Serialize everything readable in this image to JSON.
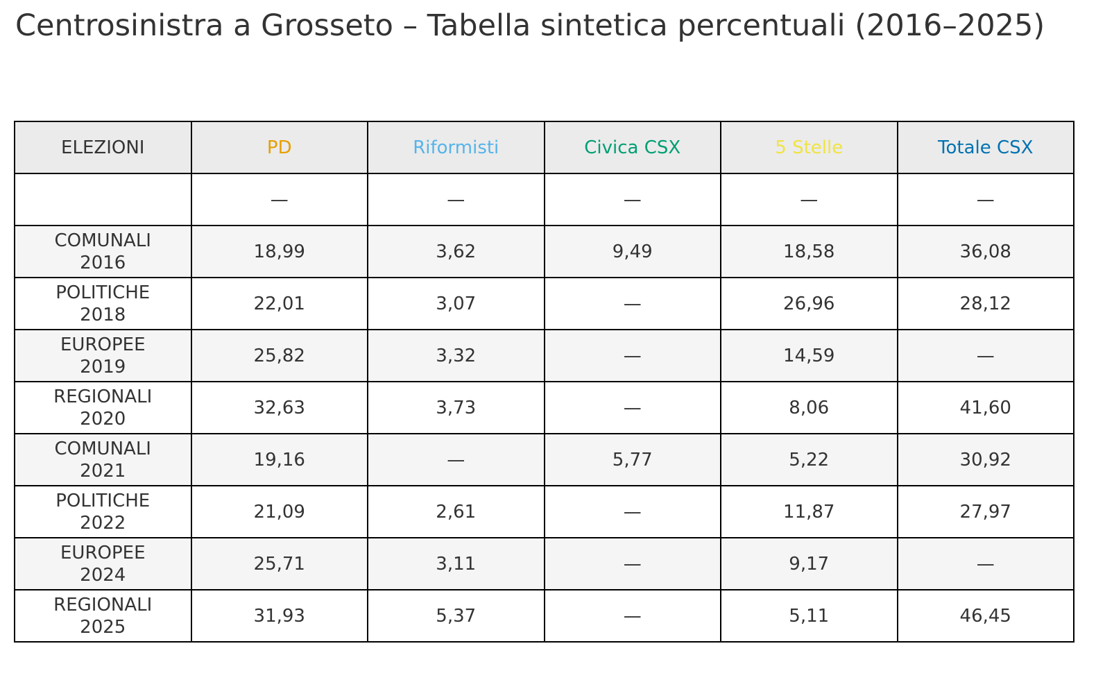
{
  "title": "Centrosinistra a Grosseto – Tabella sintetica percentuali (2016–2025)",
  "table": {
    "columns": [
      {
        "label": "ELEZIONI",
        "color": "#333333"
      },
      {
        "label": "PD",
        "color": "#e69f00"
      },
      {
        "label": "Riformisti",
        "color": "#56b4e9"
      },
      {
        "label": "Civica CSX",
        "color": "#009e73"
      },
      {
        "label": "5 Stelle",
        "color": "#f0e442"
      },
      {
        "label": "Totale CSX",
        "color": "#0072b2"
      }
    ],
    "rows": [
      [
        null,
        "—",
        "—",
        "—",
        "—",
        "—"
      ],
      [
        "COMUNALI\n2016",
        "18,99",
        "3,62",
        "9,49",
        "18,58",
        "36,08"
      ],
      [
        "POLITICHE\n2018",
        "22,01",
        "3,07",
        "—",
        "26,96",
        "28,12"
      ],
      [
        "EUROPEE\n2019",
        "25,82",
        "3,32",
        "—",
        "14,59",
        "—"
      ],
      [
        "REGIONALI\n2020",
        "32,63",
        "3,73",
        "—",
        "8,06",
        "41,60"
      ],
      [
        "COMUNALI\n2021",
        "19,16",
        "—",
        "5,77",
        "5,22",
        "30,92"
      ],
      [
        "POLITICHE\n2022",
        "21,09",
        "2,61",
        "—",
        "11,87",
        "27,97"
      ],
      [
        "EUROPEE\n2024",
        "25,71",
        "3,11",
        "—",
        "9,17",
        "—"
      ],
      [
        "REGIONALI\n2025",
        "31,93",
        "5,37",
        "—",
        "5,11",
        "46,45"
      ]
    ]
  }
}
